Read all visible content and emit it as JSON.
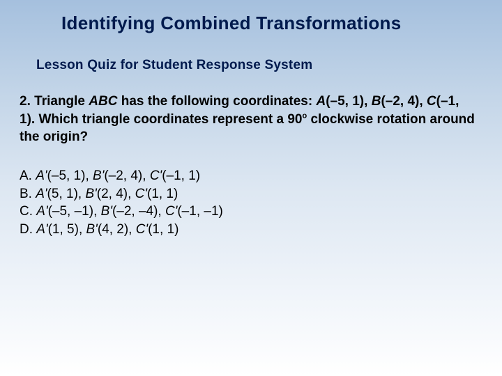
{
  "slide": {
    "title": "Identifying Combined Transformations",
    "subtitle": "Lesson Quiz for Student Response System",
    "question": {
      "number": "2.",
      "lead": "Triangle ",
      "tri": "ABC",
      "after_tri": " has the following coordinates: ",
      "ptA_label": "A",
      "ptA_coord": "(–5, 1), ",
      "ptB_label": "B",
      "ptB_coord": "(–2, 4), ",
      "ptC_label": "C",
      "ptC_coord": "(–1, 1). Which triangle coordinates represent a 90",
      "degree": "o",
      "tail": " clockwise rotation around the origin?"
    },
    "answers": {
      "A": {
        "letter": "A. ",
        "a": "A'",
        "a_c": "(–5, 1), ",
        "b": "B'",
        "b_c": "(–2, 4), ",
        "c": "C'",
        "c_c": "(–1, 1)"
      },
      "B": {
        "letter": "B. ",
        "a": "A'",
        "a_c": "(5, 1), ",
        "b": "B'",
        "b_c": "(2, 4), ",
        "c": "C'",
        "c_c": "(1, 1)"
      },
      "C": {
        "letter": "C. ",
        "a": "A'",
        "a_c": "(–5, –1), ",
        "b": "B'",
        "b_c": "(–2, –4), ",
        "c": "C'",
        "c_c": "(–1, –1)"
      },
      "D": {
        "letter": "D. ",
        "a": "A'",
        "a_c": "(1, 5), ",
        "b": "B'",
        "b_c": "(4, 2), ",
        "c": "C'",
        "c_c": "(1, 1)"
      }
    },
    "colors": {
      "title_color": "#001a4d",
      "body_color": "#000000",
      "bg_top": "#a5c0de",
      "bg_bottom": "#ffffff"
    },
    "typography": {
      "title_fontsize": 26,
      "subtitle_fontsize": 19,
      "body_fontsize": 19,
      "font_family": "Verdana"
    }
  }
}
